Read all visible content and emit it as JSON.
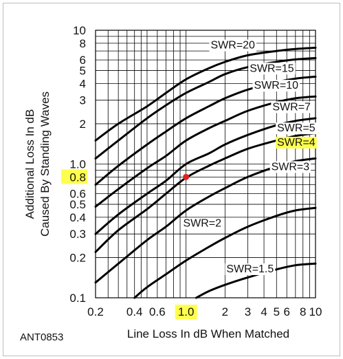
{
  "chart_data": {
    "type": "line",
    "title": "",
    "code": "ANT0853",
    "xlabel": "Line Loss In dB When Matched",
    "ylabel_lines": [
      "Additional Loss In dB",
      "Caused By Standing Waves"
    ],
    "x_scale": "log",
    "y_scale": "log",
    "xlim": [
      0.2,
      10
    ],
    "ylim": [
      0.1,
      10
    ],
    "grid": true,
    "x_ticks": [
      {
        "value": 0.2,
        "label": "0.2"
      },
      {
        "value": 0.4,
        "label": "0.4"
      },
      {
        "value": 0.6,
        "label": "0.6"
      },
      {
        "value": 1.0,
        "label": "1.0"
      },
      {
        "value": 2,
        "label": "2"
      },
      {
        "value": 3,
        "label": "3"
      },
      {
        "value": 4,
        "label": "4"
      },
      {
        "value": 5,
        "label": "5"
      },
      {
        "value": 6,
        "label": "6"
      },
      {
        "value": 8,
        "label": "8"
      },
      {
        "value": 10,
        "label": "10"
      }
    ],
    "y_ticks": [
      {
        "value": 0.1,
        "label": "0.1"
      },
      {
        "value": 0.2,
        "label": "0.2"
      },
      {
        "value": 0.3,
        "label": "0.3"
      },
      {
        "value": 0.4,
        "label": "0.4"
      },
      {
        "value": 0.5,
        "label": "0.5"
      },
      {
        "value": 0.6,
        "label": "0.6"
      },
      {
        "value": 0.8,
        "label": "0.8"
      },
      {
        "value": 1.0,
        "label": "1.0"
      },
      {
        "value": 2,
        "label": "2"
      },
      {
        "value": 3,
        "label": "3"
      },
      {
        "value": 4,
        "label": "4"
      },
      {
        "value": 5,
        "label": "5"
      },
      {
        "value": 6,
        "label": "6"
      },
      {
        "value": 8,
        "label": "8"
      },
      {
        "value": 10,
        "label": "10"
      }
    ],
    "highlight_color": "#ffff4d",
    "highlighted_x_tick": "1.0",
    "highlighted_y_tick": "0.8",
    "highlighted_series": "SWR=4",
    "marker": {
      "x": 1.0,
      "y": 0.8,
      "color": "#e02020"
    },
    "series": [
      {
        "name": "SWR=20",
        "x": [
          0.2,
          0.3,
          0.5,
          0.7,
          1.0,
          1.5,
          2,
          3,
          5,
          7,
          10
        ],
        "y": [
          1.5,
          2.0,
          2.7,
          3.4,
          4.3,
          5.2,
          5.8,
          6.5,
          7.0,
          7.25,
          7.4
        ]
      },
      {
        "name": "SWR=15",
        "x": [
          0.2,
          0.3,
          0.5,
          0.7,
          1.0,
          1.5,
          2,
          3,
          5,
          7,
          10
        ],
        "y": [
          1.1,
          1.5,
          2.2,
          2.75,
          3.4,
          4.1,
          4.7,
          5.3,
          5.8,
          6.05,
          6.2
        ]
      },
      {
        "name": "SWR=10",
        "x": [
          0.2,
          0.3,
          0.5,
          0.7,
          1.0,
          1.5,
          2,
          3,
          5,
          7,
          10
        ],
        "y": [
          0.7,
          0.97,
          1.4,
          1.75,
          2.2,
          2.7,
          3.1,
          3.6,
          4.1,
          4.35,
          4.5
        ]
      },
      {
        "name": "SWR=7",
        "x": [
          0.2,
          0.3,
          0.5,
          0.7,
          1.0,
          1.5,
          2,
          3,
          5,
          7,
          10
        ],
        "y": [
          0.48,
          0.65,
          0.93,
          1.15,
          1.5,
          1.85,
          2.1,
          2.5,
          2.9,
          3.1,
          3.2
        ]
      },
      {
        "name": "SWR=5",
        "x": [
          0.2,
          0.3,
          0.5,
          0.7,
          1.0,
          1.5,
          2,
          3,
          5,
          7,
          10
        ],
        "y": [
          0.3,
          0.42,
          0.6,
          0.75,
          1.0,
          1.2,
          1.4,
          1.65,
          1.95,
          2.1,
          2.2
        ]
      },
      {
        "name": "SWR=4",
        "x": [
          0.2,
          0.3,
          0.5,
          0.7,
          1.0,
          1.5,
          2,
          3,
          5,
          7,
          10
        ],
        "y": [
          0.22,
          0.32,
          0.46,
          0.6,
          0.79,
          0.97,
          1.1,
          1.3,
          1.5,
          1.62,
          1.7
        ]
      },
      {
        "name": "SWR=3",
        "x": [
          0.2,
          0.3,
          0.5,
          0.7,
          1.0,
          1.5,
          2,
          3,
          5,
          7,
          10
        ],
        "y": [
          0.13,
          0.18,
          0.27,
          0.34,
          0.45,
          0.57,
          0.66,
          0.8,
          0.96,
          1.05,
          1.1
        ]
      },
      {
        "name": "SWR=2",
        "x": [
          0.4,
          0.5,
          0.7,
          1.0,
          1.5,
          2,
          3,
          5,
          7,
          10
        ],
        "y": [
          0.1,
          0.12,
          0.15,
          0.19,
          0.24,
          0.28,
          0.34,
          0.41,
          0.45,
          0.47
        ]
      },
      {
        "name": "SWR=1.5",
        "x": [
          1.2,
          1.5,
          2,
          3,
          5,
          7,
          10
        ],
        "y": [
          0.1,
          0.112,
          0.125,
          0.142,
          0.163,
          0.175,
          0.18
        ]
      }
    ],
    "series_label_positions": [
      {
        "name": "SWR=20",
        "x": 1.55,
        "y": 7.3
      },
      {
        "name": "SWR=15",
        "x": 3.1,
        "y": 4.9
      },
      {
        "name": "SWR=10",
        "x": 3.35,
        "y": 3.65
      },
      {
        "name": "SWR=7",
        "x": 4.65,
        "y": 2.52
      },
      {
        "name": "SWR=5",
        "x": 5.05,
        "y": 1.75
      },
      {
        "name": "SWR=4",
        "x": 5.05,
        "y": 1.37
      },
      {
        "name": "SWR=3",
        "x": 4.55,
        "y": 0.9
      },
      {
        "name": "SWR=2",
        "x": 0.95,
        "y": 0.34
      },
      {
        "name": "SWR=1.5",
        "x": 2.05,
        "y": 0.155
      }
    ]
  }
}
